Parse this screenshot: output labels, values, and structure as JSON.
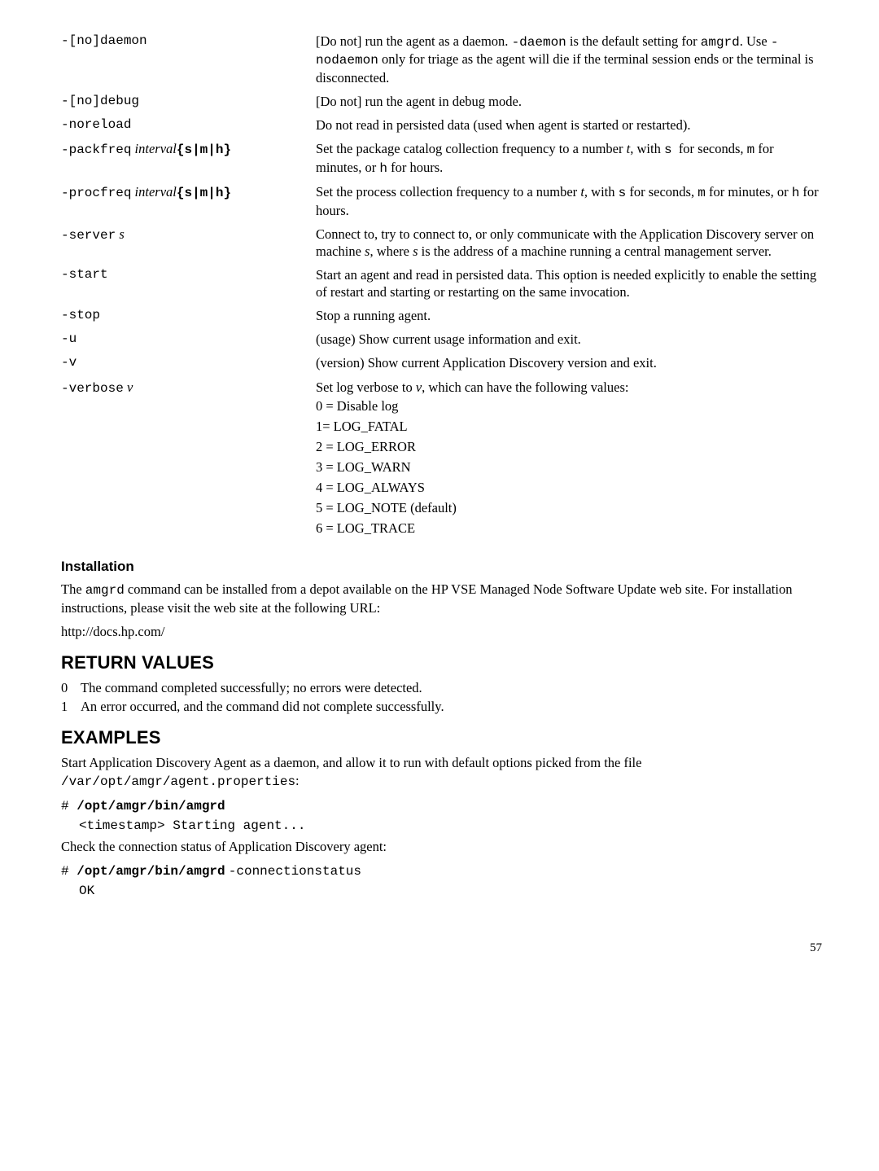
{
  "options": [
    {
      "flag_html": "-[no]daemon",
      "flag_class": "mono",
      "desc_html": "[Do not] run the agent as a daemon. <span class=\"mono\">-daemon</span> is the default setting for <span class=\"mono\">amgrd</span>. Use <span class=\"mono\">-nodaemon</span> only for triage as the agent will die if the terminal session ends or the terminal is disconnected."
    },
    {
      "flag_html": "-[no]debug",
      "flag_class": "mono",
      "desc_html": "[Do not] run the agent in debug mode."
    },
    {
      "flag_html": "-noreload",
      "flag_class": "mono",
      "desc_html": "Do not read in persisted data (used when agent is started or restarted)."
    },
    {
      "flag_html": "<span class=\"mono\">-packfreq</span> <span class=\"italic\">interval</span><span class=\"mono bold\">{s|m|h}</span>",
      "flag_class": "",
      "desc_html": "Set the package catalog collection frequency to a number <span class=\"italic\">t</span>, with <span class=\"mono\">s</span>&nbsp; for seconds, <span class=\"mono\">m</span> for minutes, or <span class=\"mono\">h</span> for hours."
    },
    {
      "flag_html": "<span class=\"mono\">-procfreq</span> <span class=\"italic\">interval</span><span class=\"mono bold\">{s|m|h}</span>",
      "flag_class": "",
      "desc_html": "Set the process collection frequency to a number <span class=\"italic\">t</span>, with <span class=\"mono\">s</span> for seconds, <span class=\"mono\">m</span> for minutes, or <span class=\"mono\">h</span> for hours."
    },
    {
      "flag_html": "<span class=\"mono\">-server</span> <span class=\"italic\">s</span>",
      "flag_class": "",
      "desc_html": "Connect to, try to connect to, or only communicate with the Application Discovery server on machine <span class=\"italic\">s</span>, where <span class=\"italic\">s</span> is the address of a machine running a central management server."
    },
    {
      "flag_html": "-start",
      "flag_class": "mono",
      "desc_html": "Start an agent and read in persisted data. This option is needed explicitly to enable the setting of restart and starting or restarting on the same invocation."
    },
    {
      "flag_html": "-stop",
      "flag_class": "mono",
      "desc_html": "Stop a running agent."
    },
    {
      "flag_html": "-u",
      "flag_class": "mono",
      "desc_html": "(usage) Show current usage information and exit."
    },
    {
      "flag_html": "-v",
      "flag_class": "mono",
      "desc_html": "(version) Show current Application Discovery version and exit."
    }
  ],
  "verbose": {
    "flag_html": "<span class=\"mono\">-verbose</span> <span class=\"italic\">v</span>",
    "intro_html": "Set log verbose to <span class=\"italic\">v</span>, which can have the following values:",
    "levels": [
      "0 = Disable log",
      "1= LOG_FATAL",
      "2 = LOG_ERROR",
      "3 = LOG_WARN",
      "4 = LOG_ALWAYS",
      "5 = LOG_NOTE (default)",
      "6 = LOG_TRACE"
    ]
  },
  "installation": {
    "heading": "Installation",
    "p1_html": "The <span class=\"mono\">amgrd</span> command can be installed from a depot available on the HP VSE Managed Node Software Update web site. For installation instructions, please visit the web site at the following URL:",
    "url": "http://docs.hp.com/"
  },
  "return": {
    "heading": "RETURN VALUES",
    "rows": [
      {
        "n": "0",
        "t": "The command completed successfully; no errors were detected."
      },
      {
        "n": "1",
        "t": "An error occurred, and the command did not complete successfully."
      }
    ]
  },
  "examples": {
    "heading": "EXAMPLES",
    "p1_html": "Start Application Discovery Agent as a daemon, and allow it to run with default options picked from the file <span class=\"mono\">/var/opt/amgr/agent.properties</span>:",
    "cmd1_html": "<span class=\"mono\">#&nbsp;</span><span class=\"mono bold\">/opt/amgr/bin/amgrd</span>",
    "out1": "<timestamp> Starting agent...",
    "p2": "Check the connection status of Application Discovery agent:",
    "cmd2_html": "<span class=\"mono\">#&nbsp;</span><span class=\"mono bold\">/opt/amgr/bin/amgrd</span> <span class=\"mono\">-connectionstatus</span>",
    "out2": "OK"
  },
  "page_number": "57"
}
